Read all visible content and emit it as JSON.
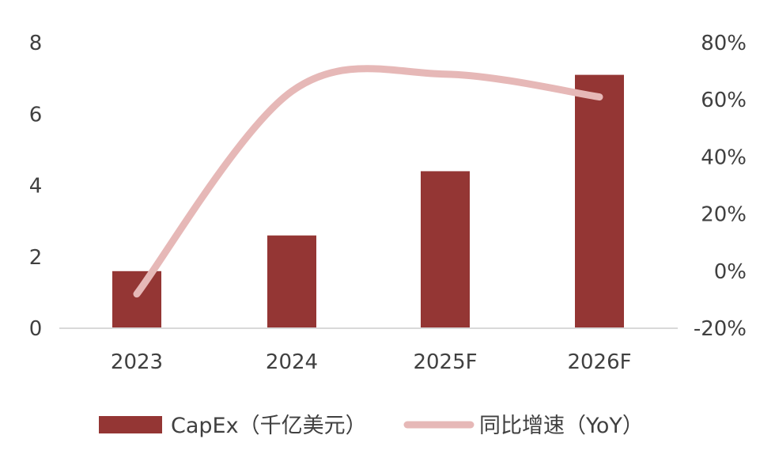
{
  "chart_data": {
    "type": "bar+line",
    "title": "",
    "xlabel": "",
    "ylabel": "",
    "categories": [
      "2023",
      "2024",
      "2025F",
      "2026F"
    ],
    "series": [
      {
        "name": "CapEx（千亿美元）",
        "type": "bar",
        "axis": "left",
        "color": "#943634",
        "values": [
          1.6,
          2.6,
          4.4,
          7.1
        ]
      },
      {
        "name": "同比增速（YoY）",
        "type": "line",
        "axis": "right",
        "color": "#E6B8B7",
        "values": [
          -8,
          63,
          69,
          61
        ]
      }
    ],
    "y_left": {
      "min": 0,
      "max": 8,
      "ticks": [
        "0",
        "2",
        "4",
        "6",
        "8"
      ]
    },
    "y_right": {
      "min": -20,
      "max": 80,
      "ticks": [
        "-20%",
        "0%",
        "20%",
        "40%",
        "60%",
        "80%"
      ]
    },
    "grid": false,
    "legend": "bottom"
  }
}
